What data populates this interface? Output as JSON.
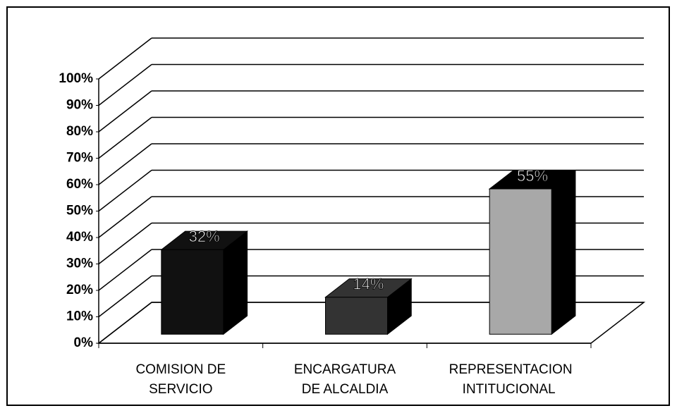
{
  "chart_data": {
    "type": "bar3d",
    "categories": [
      "COMISION DE SERVICIO",
      "ENCARGATURA DE ALCALDIA",
      "REPRESENTACION INTITUCIONAL"
    ],
    "values": [
      32,
      14,
      55
    ],
    "value_labels": [
      "32%",
      "14%",
      "55%"
    ],
    "colors": [
      "#111111",
      "#333333",
      "#a8a8a8"
    ],
    "ylim": [
      0,
      100
    ],
    "yticks": [
      {
        "value": 0,
        "label": "0%"
      },
      {
        "value": 10,
        "label": "10%"
      },
      {
        "value": 20,
        "label": "20%"
      },
      {
        "value": 30,
        "label": "30%"
      },
      {
        "value": 40,
        "label": "40%"
      },
      {
        "value": 50,
        "label": "50%"
      },
      {
        "value": 60,
        "label": "60%"
      },
      {
        "value": 70,
        "label": "70%"
      },
      {
        "value": 80,
        "label": "80%"
      },
      {
        "value": 90,
        "label": "90%"
      },
      {
        "value": 100,
        "label": "100%"
      }
    ],
    "grid": true
  }
}
